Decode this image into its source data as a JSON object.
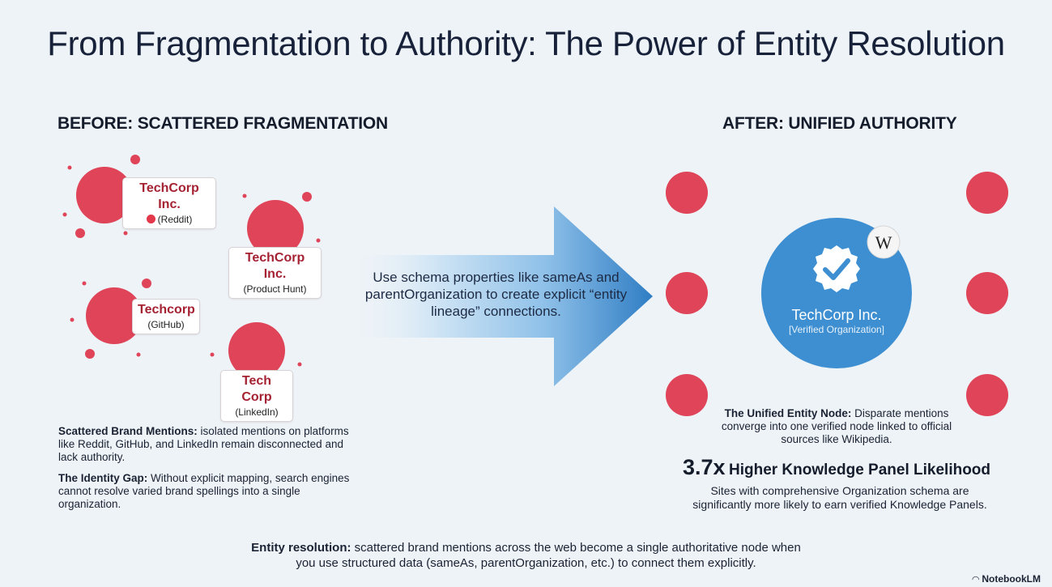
{
  "title": "From Fragmentation to Authority: The Power of Entity Resolution",
  "before": {
    "heading": "BEFORE: SCATTERED FRAGMENTATION",
    "mentions": [
      {
        "name": "TechCorp Inc.",
        "source": "(Reddit)",
        "icon": "reddit-icon"
      },
      {
        "name": "TechCorp Inc.",
        "source": "(Product Hunt)"
      },
      {
        "name": "Techcorp",
        "source": "(GitHub)"
      },
      {
        "name": "Tech Corp",
        "source": "(LinkedIn)"
      }
    ],
    "notes": [
      {
        "bold": "Scattered Brand Mentions:",
        "text": " isolated mentions on platforms like Reddit, GitHub, and LinkedIn remain disconnected and lack authority."
      },
      {
        "bold": "The Identity Gap:",
        "text": " Without explicit mapping, search engines cannot resolve varied brand spellings into a single organization."
      }
    ]
  },
  "arrow": {
    "text": "Use schema properties like sameAs and parentOrganization to create explicit “entity lineage” connections."
  },
  "after": {
    "heading": "AFTER: UNIFIED AUTHORITY",
    "node_name": "TechCorp Inc.",
    "node_sub": "[Verified Organization]",
    "wiki_glyph": "W",
    "caption_bold": "The Unified Entity Node:",
    "caption_text": " Disparate mentions converge into one verified node linked to official sources like Wikipedia.",
    "stat_value": "3.7x",
    "stat_label": "Higher Knowledge Panel Likelihood",
    "stat_desc": "Sites with comprehensive Organization schema are significantly more likely to earn verified Knowledge Panels."
  },
  "footer": {
    "bold": "Entity resolution:",
    "text": " scattered brand mentions across the web become a single authoritative node when you use structured data (sameAs, parentOrganization, etc.) to connect them explicitly."
  },
  "brand": "NotebookLM",
  "colors": {
    "red": "#df4458",
    "blue": "#3d8fd2",
    "arrow_dark": "#2f7dc4",
    "background": "#eef3f7"
  }
}
